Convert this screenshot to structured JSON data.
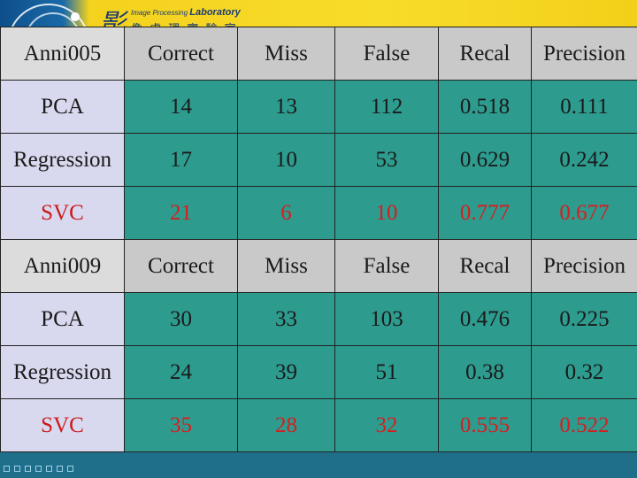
{
  "banner": {
    "logo_char": "影",
    "lab_en_prefix": "Image Processing",
    "lab_en_main": "Laboratory",
    "lab_cn": "像.處.理.實.驗.室"
  },
  "tables": [
    {
      "header": [
        "Anni005",
        "Correct",
        "Miss",
        "False",
        "Recal",
        "Precision"
      ],
      "rows": [
        [
          "PCA",
          "14",
          "13",
          "112",
          "0.518",
          "0.111"
        ],
        [
          "Regression",
          "17",
          "10",
          "53",
          "0.629",
          "0.242"
        ],
        [
          "SVC",
          "21",
          "6",
          "10",
          "0.777",
          "0.677"
        ]
      ]
    },
    {
      "header": [
        "Anni009",
        "Correct",
        "Miss",
        "False",
        "Recal",
        "Precision"
      ],
      "rows": [
        [
          "PCA",
          "30",
          "33",
          "103",
          "0.476",
          "0.225"
        ],
        [
          "Regression",
          "24",
          "39",
          "51",
          "0.38",
          "0.32"
        ],
        [
          "SVC",
          "35",
          "28",
          "32",
          "0.555",
          "0.522"
        ]
      ]
    }
  ],
  "colors": {
    "header_bg": "#c9c9c9",
    "data_bg": "#2e9b8f",
    "name_bg": "#d8d8ef",
    "svc_text": "#cc1a1a",
    "banner_yellow": "#f8dc2a",
    "page_bg": "#1f6f8b"
  }
}
